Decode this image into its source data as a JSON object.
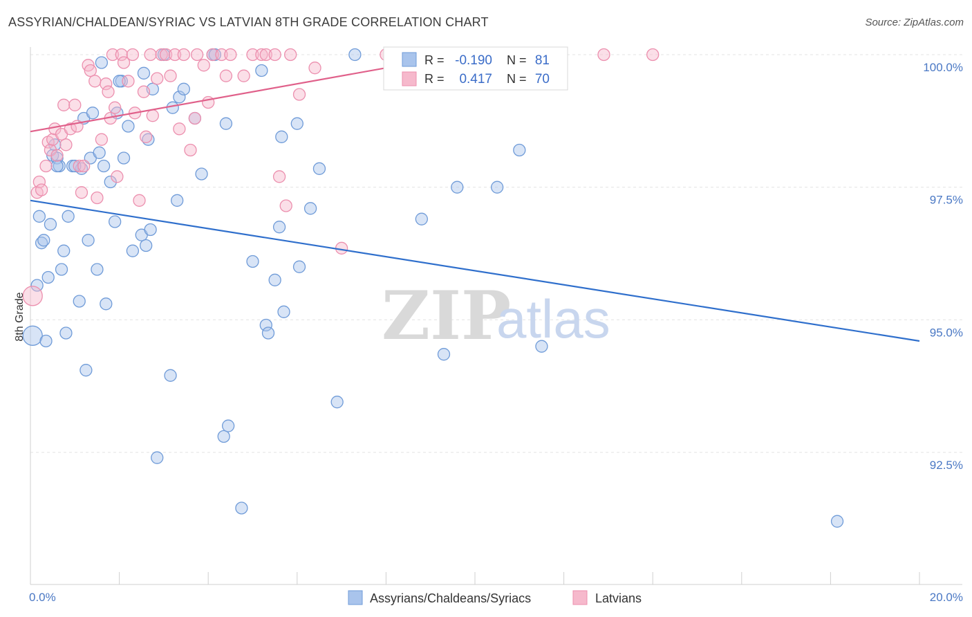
{
  "title": "ASSYRIAN/CHALDEAN/SYRIAC VS LATVIAN 8TH GRADE CORRELATION CHART",
  "source": "Source: ZipAtlas.com",
  "watermark": {
    "zip": "ZIP",
    "atlas": "atlas"
  },
  "legend": {
    "r_label": "R =",
    "n_label": "N =",
    "series1": {
      "r": "-0.190",
      "n": "81"
    },
    "series2": {
      "r": "0.417",
      "n": "70"
    }
  },
  "colors": {
    "blue_fill": "#a9c4ec",
    "blue_stroke": "#6f9bd8",
    "blue_line": "#2f6fcc",
    "pink_fill": "#f6b9cc",
    "pink_stroke": "#ec8fae",
    "pink_line": "#e0608a"
  },
  "chart_data": {
    "type": "scatter",
    "title": "ASSYRIAN/CHALDEAN/SYRIAC VS LATVIAN 8TH GRADE CORRELATION CHART",
    "xlabel": "",
    "ylabel": "8th Grade",
    "xlim": [
      0,
      20
    ],
    "ylim": [
      90.0,
      100.5
    ],
    "x_tick_labels": [
      "0.0%",
      "20.0%"
    ],
    "y_ticks": [
      92.5,
      95.0,
      97.5,
      100.0
    ],
    "y_tick_labels": [
      "92.5%",
      "95.0%",
      "97.5%",
      "100.0%"
    ],
    "series": [
      {
        "name": "Assyrians/Chaldeans/Syriacs",
        "r": -0.19,
        "n": 81,
        "trend": {
          "x": [
            0,
            20
          ],
          "y": [
            97.25,
            94.6
          ]
        },
        "points": [
          [
            0.05,
            94.7
          ],
          [
            0.15,
            95.65
          ],
          [
            0.2,
            96.95
          ],
          [
            0.25,
            96.45
          ],
          [
            0.3,
            96.5
          ],
          [
            0.35,
            94.6
          ],
          [
            0.4,
            95.8
          ],
          [
            0.45,
            96.8
          ],
          [
            0.5,
            98.1
          ],
          [
            0.55,
            98.3
          ],
          [
            0.6,
            98.05
          ],
          [
            0.65,
            97.9
          ],
          [
            0.7,
            95.95
          ],
          [
            0.75,
            96.3
          ],
          [
            0.8,
            94.75
          ],
          [
            0.85,
            96.95
          ],
          [
            0.95,
            97.9
          ],
          [
            1.1,
            95.35
          ],
          [
            1.15,
            97.85
          ],
          [
            1.2,
            98.8
          ],
          [
            1.25,
            94.05
          ],
          [
            1.3,
            96.5
          ],
          [
            1.35,
            98.05
          ],
          [
            1.5,
            95.95
          ],
          [
            1.55,
            98.15
          ],
          [
            1.6,
            99.85
          ],
          [
            1.65,
            97.9
          ],
          [
            1.7,
            95.3
          ],
          [
            1.8,
            97.6
          ],
          [
            1.9,
            96.85
          ],
          [
            1.95,
            98.9
          ],
          [
            2.05,
            99.5
          ],
          [
            2.1,
            98.05
          ],
          [
            2.2,
            98.65
          ],
          [
            2.3,
            96.3
          ],
          [
            2.5,
            96.6
          ],
          [
            2.55,
            99.65
          ],
          [
            2.6,
            96.4
          ],
          [
            2.65,
            98.4
          ],
          [
            2.7,
            96.7
          ],
          [
            2.75,
            99.35
          ],
          [
            2.85,
            92.4
          ],
          [
            3.0,
            100.0
          ],
          [
            3.15,
            93.95
          ],
          [
            3.2,
            99.0
          ],
          [
            3.3,
            97.25
          ],
          [
            3.35,
            99.2
          ],
          [
            3.45,
            99.35
          ],
          [
            3.7,
            98.8
          ],
          [
            3.85,
            97.75
          ],
          [
            4.1,
            100.0
          ],
          [
            4.15,
            100.0
          ],
          [
            4.35,
            92.8
          ],
          [
            4.4,
            98.7
          ],
          [
            4.45,
            93.0
          ],
          [
            4.75,
            91.45
          ],
          [
            5.0,
            96.1
          ],
          [
            5.2,
            99.7
          ],
          [
            5.3,
            94.9
          ],
          [
            5.35,
            94.75
          ],
          [
            5.5,
            95.75
          ],
          [
            5.6,
            96.75
          ],
          [
            5.65,
            98.45
          ],
          [
            5.7,
            95.15
          ],
          [
            6.0,
            98.7
          ],
          [
            6.05,
            96.0
          ],
          [
            6.3,
            97.1
          ],
          [
            6.5,
            97.85
          ],
          [
            6.9,
            93.45
          ],
          [
            7.3,
            100.0
          ],
          [
            8.8,
            96.9
          ],
          [
            9.3,
            94.35
          ],
          [
            9.6,
            97.5
          ],
          [
            10.5,
            97.5
          ],
          [
            11.0,
            98.2
          ],
          [
            11.5,
            94.5
          ],
          [
            18.15,
            91.2
          ],
          [
            1.4,
            98.9
          ],
          [
            2.0,
            99.5
          ],
          [
            0.6,
            97.9
          ],
          [
            1.0,
            97.9
          ]
        ]
      },
      {
        "name": "Latvians",
        "r": 0.417,
        "n": 70,
        "trend": {
          "x": [
            0,
            10.0
          ],
          "y": [
            98.55,
            100.05
          ]
        },
        "points": [
          [
            0.05,
            95.45
          ],
          [
            0.15,
            97.4
          ],
          [
            0.2,
            97.6
          ],
          [
            0.25,
            97.45
          ],
          [
            0.35,
            97.9
          ],
          [
            0.4,
            98.35
          ],
          [
            0.45,
            98.2
          ],
          [
            0.5,
            98.4
          ],
          [
            0.55,
            98.6
          ],
          [
            0.6,
            98.1
          ],
          [
            0.7,
            98.5
          ],
          [
            0.75,
            99.05
          ],
          [
            0.8,
            98.3
          ],
          [
            0.9,
            98.6
          ],
          [
            1.0,
            99.05
          ],
          [
            1.05,
            98.65
          ],
          [
            1.1,
            97.9
          ],
          [
            1.15,
            97.4
          ],
          [
            1.2,
            97.9
          ],
          [
            1.3,
            99.8
          ],
          [
            1.35,
            99.7
          ],
          [
            1.45,
            99.5
          ],
          [
            1.5,
            97.3
          ],
          [
            1.6,
            98.4
          ],
          [
            1.7,
            99.45
          ],
          [
            1.75,
            99.3
          ],
          [
            1.8,
            98.8
          ],
          [
            1.85,
            100.0
          ],
          [
            1.9,
            99.0
          ],
          [
            1.95,
            97.7
          ],
          [
            2.05,
            100.0
          ],
          [
            2.1,
            99.85
          ],
          [
            2.2,
            99.5
          ],
          [
            2.3,
            100.0
          ],
          [
            2.35,
            98.9
          ],
          [
            2.45,
            97.25
          ],
          [
            2.55,
            99.3
          ],
          [
            2.6,
            98.45
          ],
          [
            2.7,
            100.0
          ],
          [
            2.75,
            98.85
          ],
          [
            2.85,
            99.55
          ],
          [
            2.95,
            100.0
          ],
          [
            3.05,
            100.0
          ],
          [
            3.15,
            99.6
          ],
          [
            3.25,
            100.0
          ],
          [
            3.35,
            98.6
          ],
          [
            3.45,
            100.0
          ],
          [
            3.6,
            98.2
          ],
          [
            3.7,
            98.8
          ],
          [
            3.75,
            100.0
          ],
          [
            3.9,
            99.8
          ],
          [
            4.0,
            99.1
          ],
          [
            4.1,
            100.0
          ],
          [
            4.3,
            100.0
          ],
          [
            4.4,
            99.6
          ],
          [
            4.5,
            100.0
          ],
          [
            4.8,
            99.6
          ],
          [
            5.0,
            100.0
          ],
          [
            5.2,
            100.0
          ],
          [
            5.3,
            100.0
          ],
          [
            5.5,
            100.0
          ],
          [
            5.6,
            97.7
          ],
          [
            5.75,
            97.15
          ],
          [
            5.85,
            100.0
          ],
          [
            6.05,
            99.25
          ],
          [
            6.4,
            99.75
          ],
          [
            7.0,
            96.35
          ],
          [
            8.0,
            100.0
          ],
          [
            12.9,
            100.0
          ],
          [
            14.0,
            100.0
          ]
        ]
      }
    ]
  },
  "bottom_legend": [
    {
      "label": "Assyrians/Chaldeans/Syriacs"
    },
    {
      "label": "Latvians"
    }
  ]
}
